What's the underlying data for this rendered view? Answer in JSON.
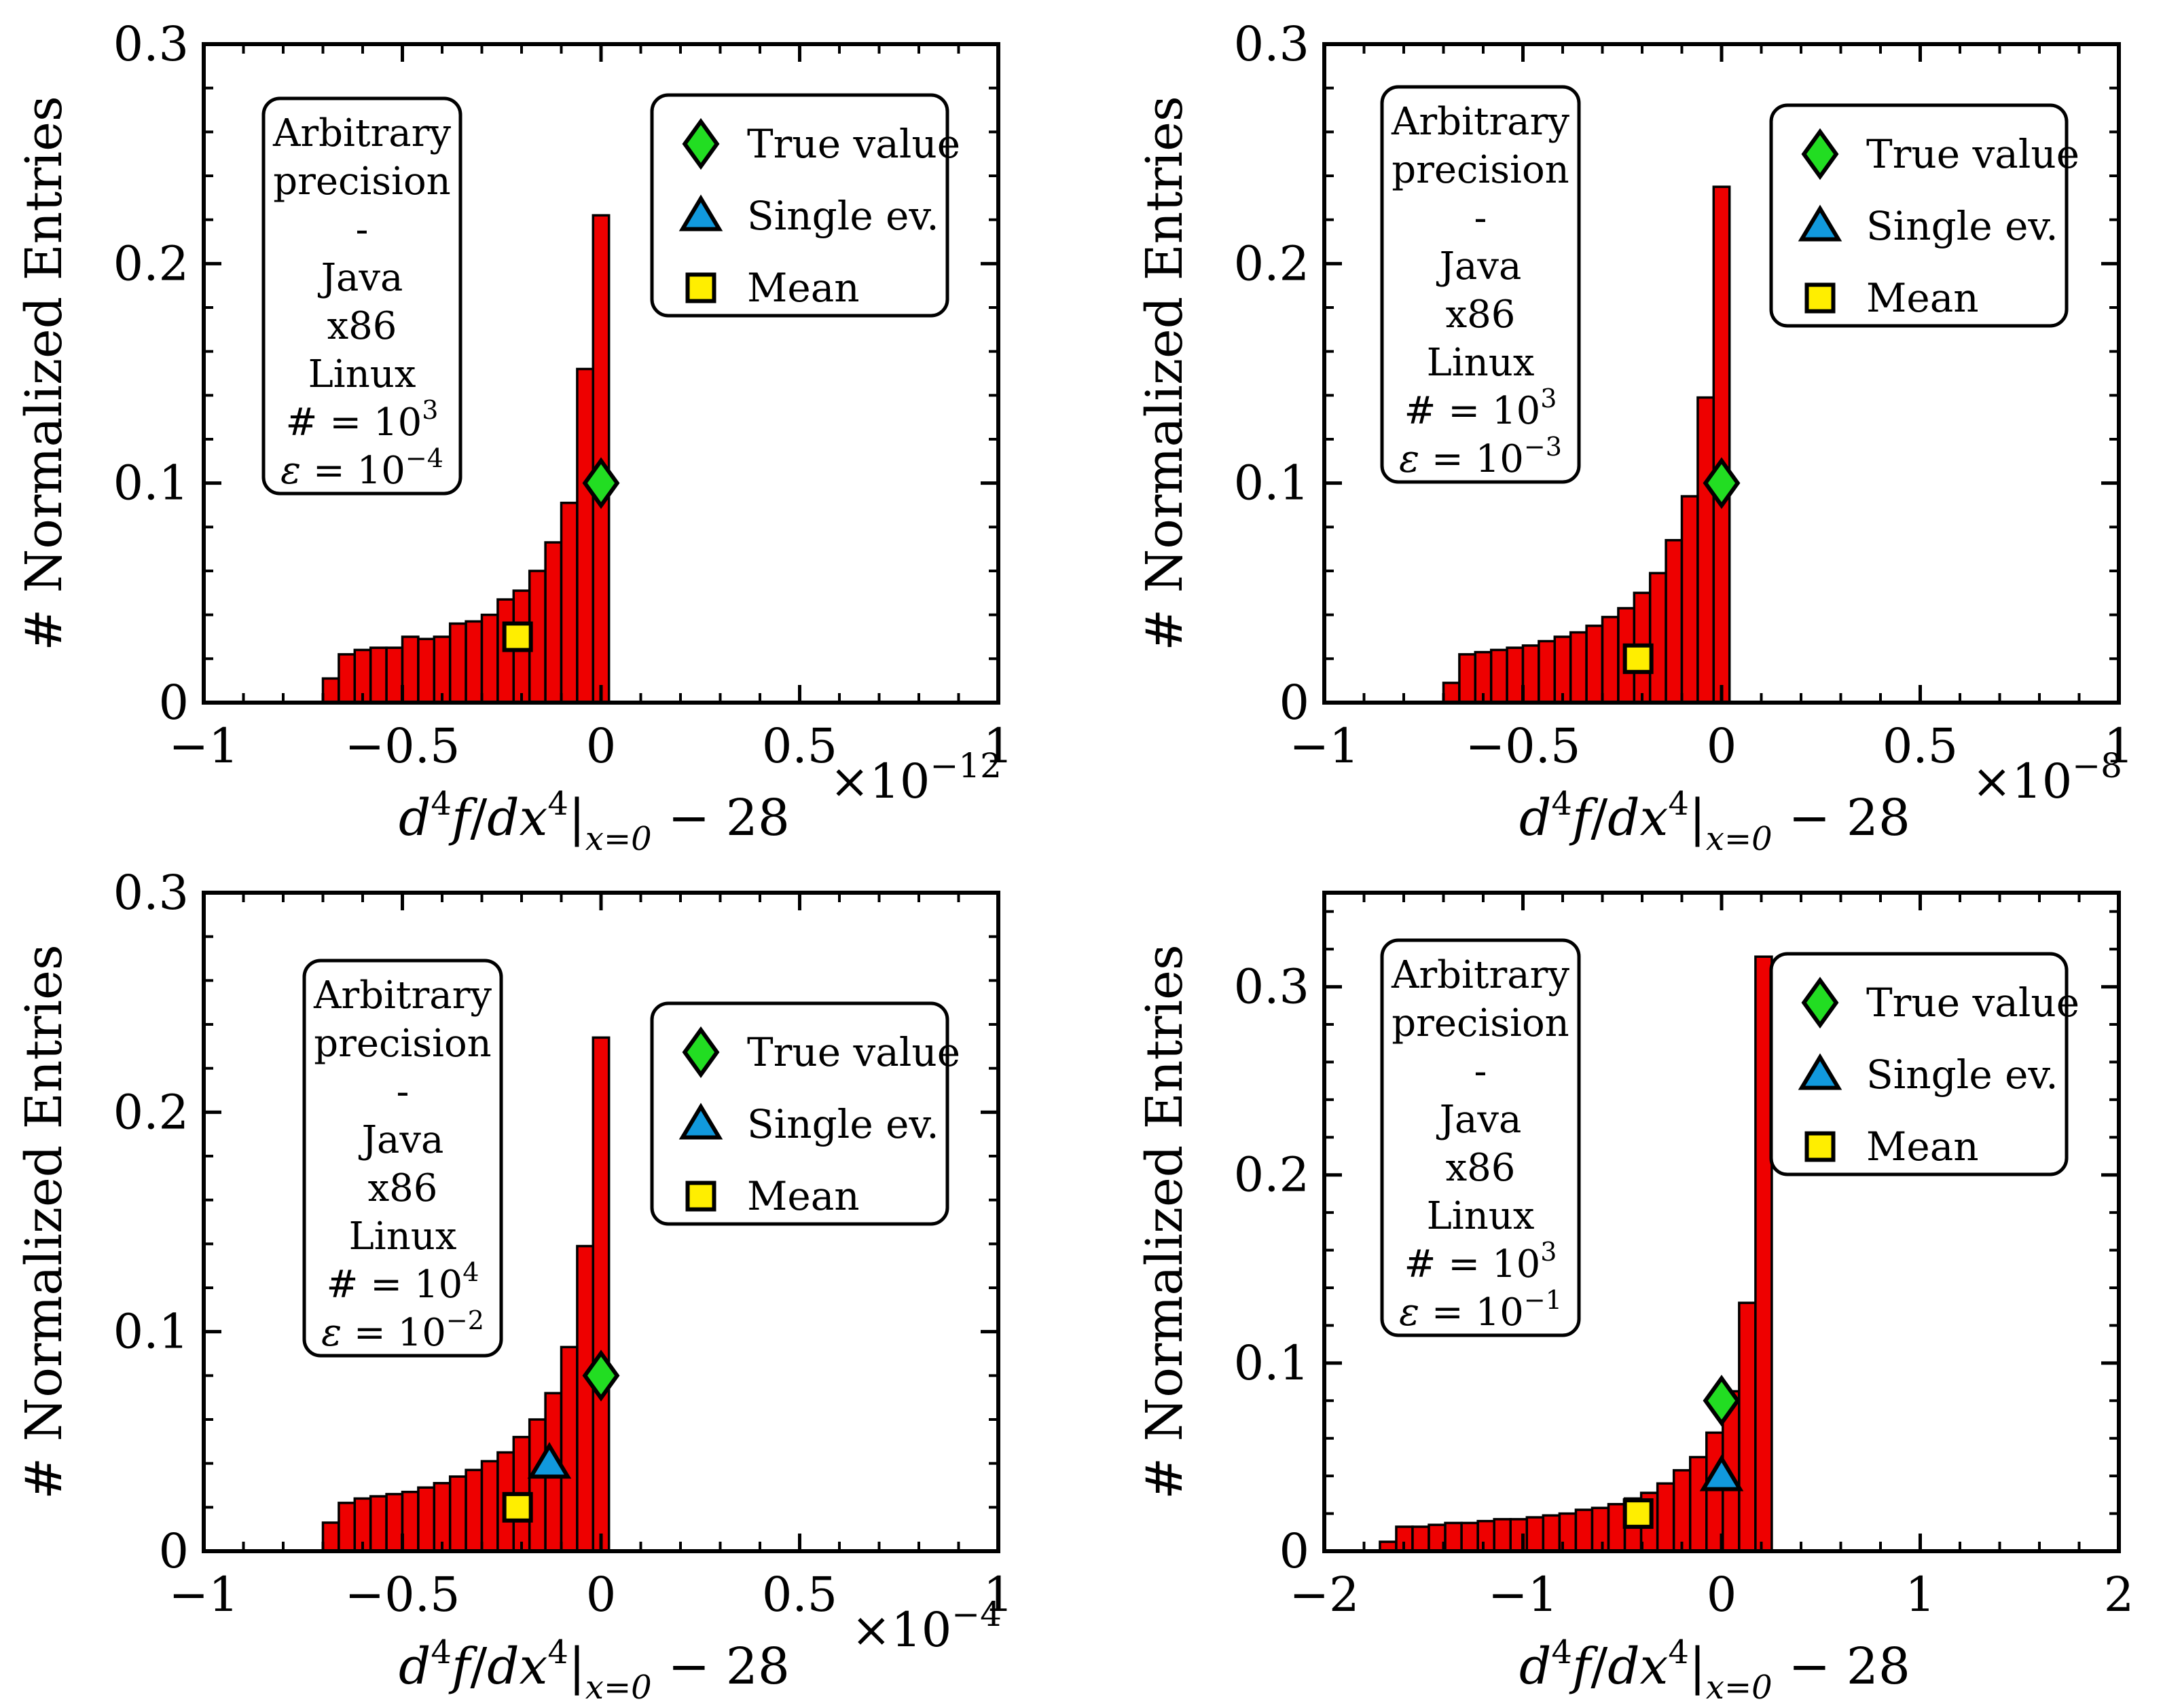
{
  "colors": {
    "bar_fill": "#ee0000",
    "bar_edge": "#000000",
    "true_value": "#22dd22",
    "single_ev": "#1199dd",
    "mean": "#ffee00"
  },
  "legend_labels": [
    "True value",
    "Single ev.",
    "Mean"
  ],
  "chart_data": [
    {
      "type": "bar",
      "panel": "top-left",
      "ylabel": "# Normalized Entries",
      "xlabel": "d^4f/dx^4|x=0 − 28",
      "x_multiplier": "×10",
      "x_multiplier_exp": "−12",
      "xlim": [
        -1,
        1
      ],
      "ylim": [
        0,
        0.3
      ],
      "xticks": [
        -1,
        -0.5,
        0,
        0.5,
        1
      ],
      "xtick_labels": [
        "−1",
        "−0.5",
        "0",
        "0.5",
        "1"
      ],
      "yticks": [
        0,
        0.1,
        0.2,
        0.3
      ],
      "ytick_labels": [
        "0",
        "0.1",
        "0.2",
        "0.3"
      ],
      "bin_edges_start": -0.7,
      "bin_width": 0.04,
      "values": [
        0.011,
        0.022,
        0.024,
        0.025,
        0.025,
        0.03,
        0.029,
        0.03,
        0.036,
        0.037,
        0.04,
        0.047,
        0.051,
        0.06,
        0.073,
        0.091,
        0.152,
        0.222
      ],
      "markers": {
        "true_value": [
          0,
          0.1
        ],
        "single_ev": null,
        "mean": [
          -0.21,
          0.03
        ]
      },
      "info_box": {
        "lines": [
          "Arbitrary",
          "precision",
          "-",
          "Java",
          "x86",
          "Linux"
        ],
        "n_base": "10",
        "n_exp": "3",
        "eps_base": "10",
        "eps_exp": "−4"
      },
      "legend_position": "top-right"
    },
    {
      "type": "bar",
      "panel": "top-right",
      "ylabel": "# Normalized Entries",
      "xlabel": "d^4f/dx^4|x=0 − 28",
      "x_multiplier": "×10",
      "x_multiplier_exp": "−8",
      "xlim": [
        -1,
        1
      ],
      "ylim": [
        0,
        0.3
      ],
      "xticks": [
        -1,
        -0.5,
        0,
        0.5,
        1
      ],
      "xtick_labels": [
        "−1",
        "−0.5",
        "0",
        "0.5",
        "1"
      ],
      "yticks": [
        0,
        0.1,
        0.2,
        0.3
      ],
      "ytick_labels": [
        "0",
        "0.1",
        "0.2",
        "0.3"
      ],
      "bin_edges_start": -0.7,
      "bin_width": 0.04,
      "values": [
        0.009,
        0.022,
        0.023,
        0.024,
        0.025,
        0.026,
        0.028,
        0.03,
        0.032,
        0.035,
        0.039,
        0.043,
        0.05,
        0.059,
        0.074,
        0.094,
        0.139,
        0.235
      ],
      "markers": {
        "true_value": [
          0,
          0.1
        ],
        "single_ev": null,
        "mean": [
          -0.21,
          0.02
        ]
      },
      "info_box": {
        "lines": [
          "Arbitrary",
          "precision",
          "-",
          "Java",
          "x86",
          "Linux"
        ],
        "n_base": "10",
        "n_exp": "3",
        "eps_base": "10",
        "eps_exp": "−3"
      },
      "legend_position": "top-right"
    },
    {
      "type": "bar",
      "panel": "bottom-left",
      "ylabel": "# Normalized Entries",
      "xlabel": "d^4f/dx^4|x=0 − 28",
      "x_multiplier": "×10",
      "x_multiplier_exp": "−4",
      "xlim": [
        -1,
        1
      ],
      "ylim": [
        0,
        0.3
      ],
      "xticks": [
        -1,
        -0.5,
        0,
        0.5,
        1
      ],
      "xtick_labels": [
        "−1",
        "−0.5",
        "0",
        "0.5",
        "1"
      ],
      "yticks": [
        0,
        0.1,
        0.2,
        0.3
      ],
      "ytick_labels": [
        "0",
        "0.1",
        "0.2",
        "0.3"
      ],
      "bin_edges_start": -0.7,
      "bin_width": 0.04,
      "values": [
        0.013,
        0.022,
        0.024,
        0.025,
        0.026,
        0.027,
        0.029,
        0.031,
        0.034,
        0.037,
        0.041,
        0.045,
        0.052,
        0.06,
        0.072,
        0.093,
        0.139,
        0.234
      ],
      "markers": {
        "true_value": [
          0,
          0.08
        ],
        "single_ev": [
          -0.13,
          0.04
        ],
        "mean": [
          -0.21,
          0.02
        ]
      },
      "info_box": {
        "lines": [
          "Arbitrary",
          "precision",
          "-",
          "Java",
          "x86",
          "Linux"
        ],
        "n_base": "10",
        "n_exp": "4",
        "eps_base": "10",
        "eps_exp": "−2"
      },
      "legend_position": "center-right"
    },
    {
      "type": "bar",
      "panel": "bottom-right",
      "ylabel": "# Normalized Entries",
      "xlabel": "d^4f/dx^4|x=0 − 28",
      "x_multiplier": "",
      "x_multiplier_exp": "",
      "xlim": [
        -2,
        2
      ],
      "ylim": [
        0,
        0.35
      ],
      "xticks": [
        -2,
        -1,
        0,
        1,
        2
      ],
      "xtick_labels": [
        "−2",
        "−1",
        "0",
        "1",
        "2"
      ],
      "yticks": [
        0,
        0.1,
        0.2,
        0.3
      ],
      "ytick_labels": [
        "0",
        "0.1",
        "0.2",
        "0.3"
      ],
      "bin_edges_start": -1.72,
      "bin_width": 0.0822,
      "values": [
        0.005,
        0.013,
        0.013,
        0.014,
        0.015,
        0.015,
        0.016,
        0.017,
        0.017,
        0.018,
        0.019,
        0.02,
        0.022,
        0.023,
        0.025,
        0.028,
        0.031,
        0.036,
        0.043,
        0.05,
        0.063,
        0.085,
        0.132,
        0.316
      ],
      "markers": {
        "true_value": [
          0,
          0.08
        ],
        "single_ev": [
          0,
          0.04
        ],
        "mean": [
          -0.42,
          0.02
        ]
      },
      "info_box": {
        "lines": [
          "Arbitrary",
          "precision",
          "-",
          "Java",
          "x86",
          "Linux"
        ],
        "n_base": "10",
        "n_exp": "3",
        "eps_base": "10",
        "eps_exp": "−1"
      },
      "legend_position": "top-right"
    }
  ]
}
